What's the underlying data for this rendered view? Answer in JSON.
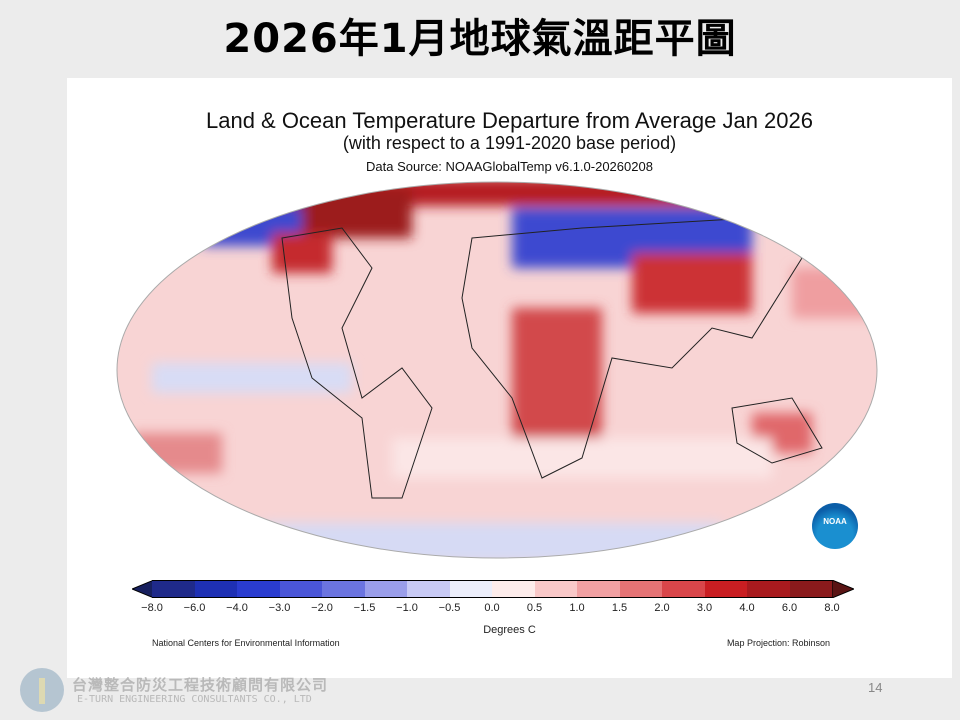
{
  "slide_title": "2026年1月地球氣溫距平圖",
  "figure": {
    "title": "Land & Ocean Temperature Departure from Average Jan 2026",
    "subtitle": "(with respect to a 1991-2020 base period)",
    "source": "Data Source: NOAAGlobalTemp v6.1.0-20260208",
    "colorbar_ticks": [
      "−8.0",
      "−6.0",
      "−4.0",
      "−3.0",
      "−2.0",
      "−1.5",
      "−1.0",
      "−0.5",
      "0.0",
      "0.5",
      "1.0",
      "1.5",
      "2.0",
      "3.0",
      "4.0",
      "6.0",
      "8.0"
    ],
    "colorbar_colors": [
      "#1f2a8a",
      "#1e30b4",
      "#2a3cd0",
      "#4a56d8",
      "#6b74e0",
      "#9a9eea",
      "#c8caf5",
      "#eceefb",
      "#fdeceb",
      "#f9c8c8",
      "#f1a0a2",
      "#e57375",
      "#d9464a",
      "#c91e22",
      "#a81a1e",
      "#8a1a1c"
    ],
    "units": "Degrees C",
    "credit": "National Centers for Environmental Information",
    "projection": "Map Projection: Robinson",
    "logo_text": "NOAA"
  },
  "page_number": "14",
  "company": {
    "name_zh": "台灣整合防災工程技術顧問有限公司",
    "name_en": "E-TURN ENGINEERING CONSULTANTS CO., LTD"
  }
}
